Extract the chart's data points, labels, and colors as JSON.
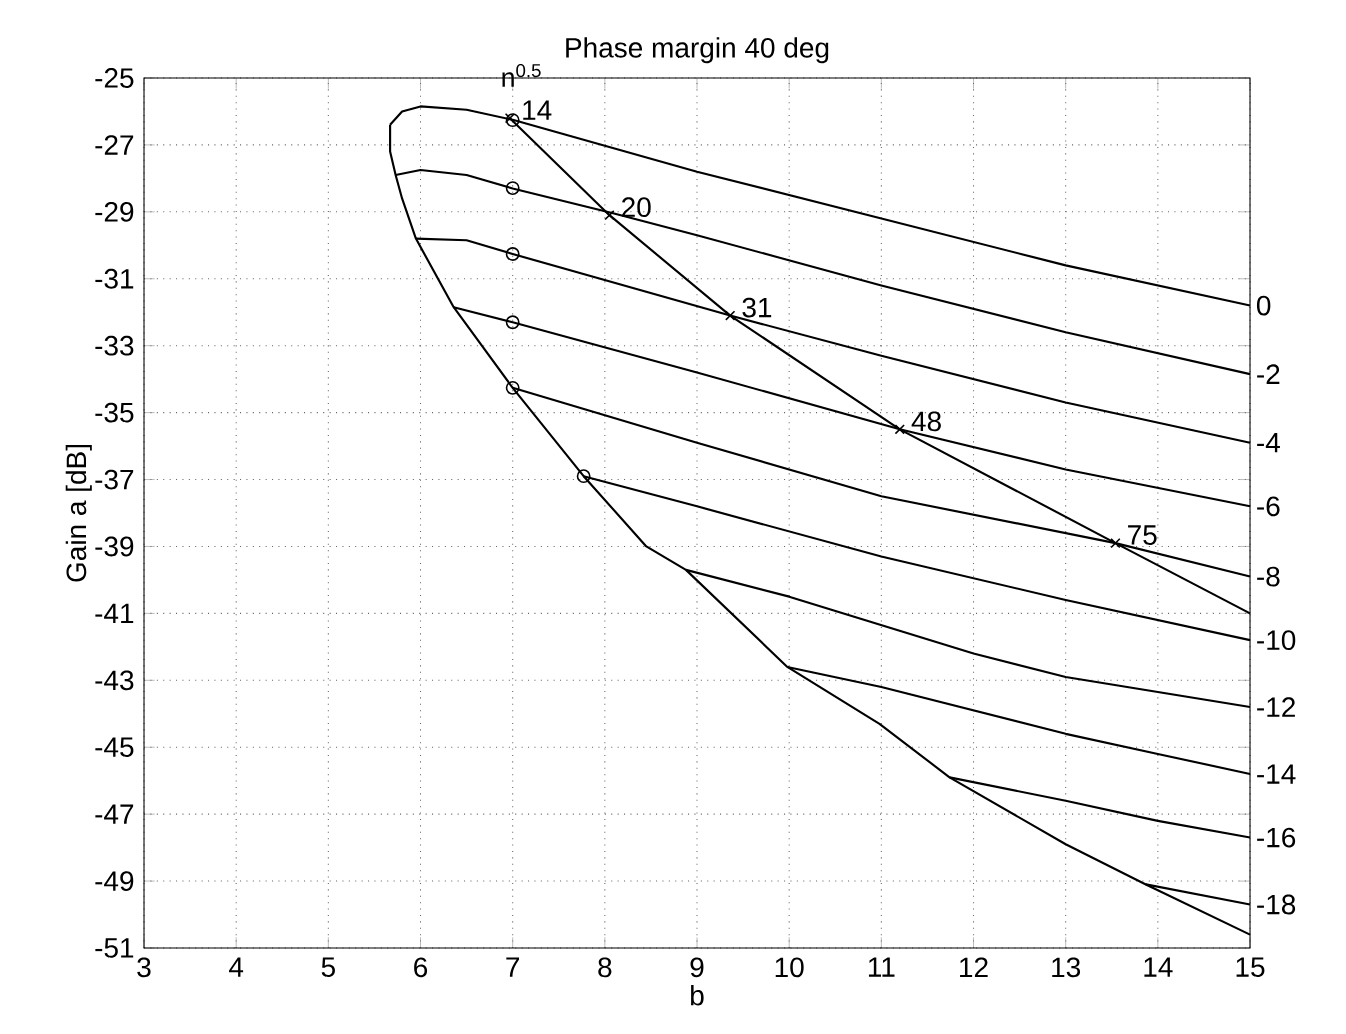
{
  "chart_data": {
    "type": "line",
    "title": "Phase margin 40 deg",
    "xlabel": "b",
    "ylabel": "Gain a [dB]",
    "xlim": [
      3,
      15
    ],
    "ylim": [
      -51,
      -25
    ],
    "xticks": [
      3,
      4,
      5,
      6,
      7,
      8,
      9,
      10,
      11,
      12,
      13,
      14,
      15
    ],
    "yticks": [
      -51,
      -49,
      -47,
      -45,
      -43,
      -41,
      -39,
      -37,
      -35,
      -33,
      -31,
      -29,
      -27,
      -25
    ],
    "grid": true,
    "annotations": [
      "n$^{0.5}$",
      {
        "text": "14",
        "x": 6.97,
        "y": -26.2
      },
      {
        "text": "20",
        "x": 8.05,
        "y": -29.1
      },
      {
        "text": "31",
        "x": 9.36,
        "y": -32.1
      },
      {
        "text": "48",
        "x": 11.2,
        "y": -35.5
      },
      {
        "text": "75",
        "x": 13.54,
        "y": -38.9
      }
    ],
    "series": [
      {
        "name": "0",
        "color": "#000000",
        "x": [
          5.67,
          5.8,
          6.0,
          6.5,
          7,
          9,
          11,
          13,
          15
        ],
        "values": [
          -26.4,
          -26.0,
          -25.85,
          -25.95,
          -26.25,
          -27.8,
          -29.2,
          -30.6,
          -31.8
        ]
      },
      {
        "name": "-2",
        "color": "#000000",
        "x": [
          5.73,
          6.0,
          6.5,
          7,
          8.1,
          9,
          11,
          13,
          15
        ],
        "values": [
          -27.9,
          -27.75,
          -27.9,
          -28.3,
          -29.05,
          -29.7,
          -31.2,
          -32.6,
          -33.85
        ]
      },
      {
        "name": "-4",
        "color": "#000000",
        "x": [
          5.95,
          6.5,
          7,
          9.36,
          11,
          13,
          15
        ],
        "values": [
          -29.8,
          -29.85,
          -30.26,
          -32.1,
          -33.3,
          -34.7,
          -35.9
        ]
      },
      {
        "name": "-6",
        "color": "#000000",
        "x": [
          6.36,
          7,
          9,
          11.2,
          13,
          15
        ],
        "values": [
          -31.85,
          -32.3,
          -33.8,
          -35.5,
          -36.7,
          -37.8
        ]
      },
      {
        "name": "-8",
        "color": "#000000",
        "x": [
          7,
          9,
          11,
          13.54,
          15
        ],
        "values": [
          -34.26,
          -35.9,
          -37.5,
          -38.9,
          -39.9
        ]
      },
      {
        "name": "-10",
        "color": "#000000",
        "x": [
          7.77,
          9,
          11,
          13,
          15
        ],
        "values": [
          -36.9,
          -37.8,
          -39.3,
          -40.6,
          -41.8
        ]
      },
      {
        "name": "-12",
        "color": "#000000",
        "x": [
          8.88,
          10,
          12,
          13,
          15
        ],
        "values": [
          -39.7,
          -40.5,
          -42.2,
          -42.9,
          -43.8
        ]
      },
      {
        "name": "-14",
        "color": "#000000",
        "x": [
          9.98,
          11,
          12,
          13,
          14,
          15
        ],
        "values": [
          -42.6,
          -43.2,
          -43.9,
          -44.6,
          -45.2,
          -45.8
        ]
      },
      {
        "name": "-16",
        "color": "#000000",
        "x": [
          11.74,
          13,
          14,
          15
        ],
        "values": [
          -45.9,
          -46.6,
          -47.2,
          -47.7
        ]
      },
      {
        "name": "-18",
        "color": "#000000",
        "x": [
          13.87,
          15
        ],
        "values": [
          -49.1,
          -49.7
        ]
      },
      {
        "color": "#000000",
        "x": [
          5.67,
          5.67,
          5.73,
          5.8,
          5.95,
          6.36,
          7,
          7.77,
          8.45,
          8.88,
          9.98,
          10.98,
          11.74,
          13,
          13.87,
          15
        ],
        "values": [
          -26.4,
          -27.2,
          -27.9,
          -28.6,
          -29.8,
          -31.85,
          -34.26,
          -36.9,
          -39.0,
          -39.7,
          -42.6,
          -44.3,
          -45.9,
          -47.9,
          -49.1,
          -50.6
        ]
      },
      {
        "color": "#000000",
        "x": [
          6.97,
          8.05,
          9.36,
          11.2,
          13.54,
          15
        ],
        "values": [
          -26.2,
          -29.1,
          -32.1,
          -35.5,
          -38.9,
          -41.0
        ]
      },
      {
        "type": "scatter",
        "marker": "cross",
        "color": "#000000",
        "x": [
          6.97,
          8.05,
          9.36,
          11.2,
          13.54
        ],
        "values": [
          -26.2,
          -29.1,
          -32.1,
          -35.5,
          -38.9
        ]
      },
      {
        "type": "scatter",
        "marker": "circle",
        "color": "#000000",
        "x": [
          7,
          7,
          7,
          7,
          7,
          7.77
        ],
        "values": [
          -26.26,
          -28.29,
          -30.26,
          -32.3,
          -34.26,
          -36.9
        ]
      }
    ]
  }
}
